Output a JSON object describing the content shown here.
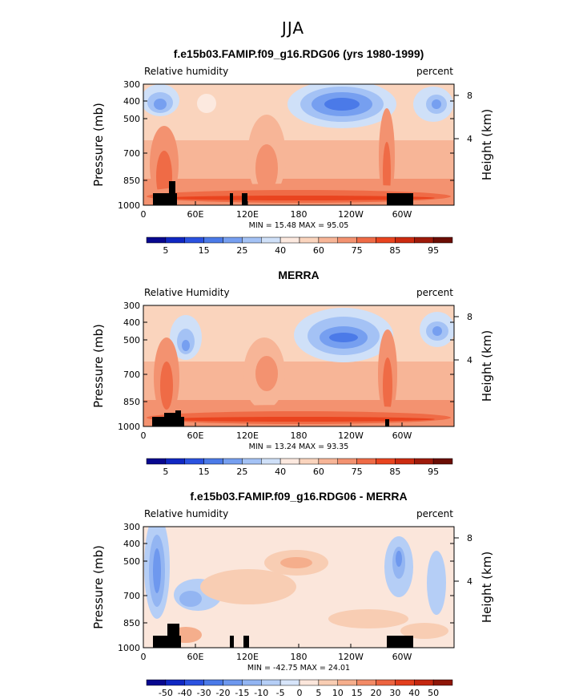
{
  "page": {
    "title": "JJA"
  },
  "colors": {
    "rh_scale": [
      "#08088f",
      "#1027c2",
      "#2b52e0",
      "#4b7ae8",
      "#769ff0",
      "#a4c2f5",
      "#cfe0f8",
      "#fce9df",
      "#fad4bd",
      "#f7b597",
      "#f39270",
      "#ef6b46",
      "#e9441f",
      "#cc2b10",
      "#9e1a0a",
      "#6b0d04"
    ],
    "diff_scale": [
      "#08088f",
      "#1027c2",
      "#2b52e0",
      "#4b7ae8",
      "#6e98ee",
      "#93b5f2",
      "#b5cef6",
      "#d7e5fa",
      "#fbe6db",
      "#f8cdb3",
      "#f5ae8c",
      "#f28a66",
      "#ec6440",
      "#e23e1d",
      "#c42710",
      "#8e1608"
    ]
  },
  "chart_data": [
    {
      "type": "heatmap",
      "title": "f.e15b03.FAMIP.f09_g16.RDG06 (yrs 1980-1999)",
      "left_label": "Relative humidity",
      "right_label": "percent",
      "ylabel": "Pressure (mb)",
      "ylabel_right": "Height (km)",
      "x_ticks": [
        "0",
        "60E",
        "120E",
        "180",
        "120W",
        "60W"
      ],
      "y_ticks": [
        "300",
        "400",
        "500",
        "700",
        "850",
        "1000"
      ],
      "y_right_ticks": [
        "8",
        "4"
      ],
      "min_max": "MIN =   15.48   MAX =   95.05",
      "colorbar_labels": [
        "5",
        "15",
        "25",
        "40",
        "60",
        "75",
        "85",
        "95"
      ],
      "min": 15.48,
      "max": 95.05
    },
    {
      "type": "heatmap",
      "title": "MERRA",
      "left_label": "Relative Humidity",
      "right_label": "percent",
      "ylabel": "Pressure (mb)",
      "ylabel_right": "Height (km)",
      "x_ticks": [
        "0",
        "60E",
        "120E",
        "180",
        "120W",
        "60W"
      ],
      "y_ticks": [
        "300",
        "400",
        "500",
        "700",
        "850",
        "1000"
      ],
      "y_right_ticks": [
        "8",
        "4"
      ],
      "min_max": "MIN =   13.24   MAX =   93.35",
      "colorbar_labels": [
        "5",
        "15",
        "25",
        "40",
        "60",
        "75",
        "85",
        "95"
      ],
      "min": 13.24,
      "max": 93.35
    },
    {
      "type": "heatmap",
      "title": "f.e15b03.FAMIP.f09_g16.RDG06 - MERRA",
      "left_label": "Relative humidity",
      "right_label": "percent",
      "ylabel": "Pressure (mb)",
      "ylabel_right": "Height (km)",
      "x_ticks": [
        "0",
        "60E",
        "120E",
        "180",
        "120W",
        "60W"
      ],
      "y_ticks": [
        "300",
        "400",
        "500",
        "700",
        "850",
        "1000"
      ],
      "y_right_ticks": [
        "8",
        "4"
      ],
      "min_max": "MIN = -42.75   MAX =   24.01",
      "colorbar_labels": [
        "-50",
        "-40",
        "-30",
        "-20",
        "-15",
        "-10",
        "-5",
        "0",
        "5",
        "10",
        "15",
        "20",
        "30",
        "40",
        "50"
      ],
      "min": -42.75,
      "max": 24.01
    }
  ]
}
